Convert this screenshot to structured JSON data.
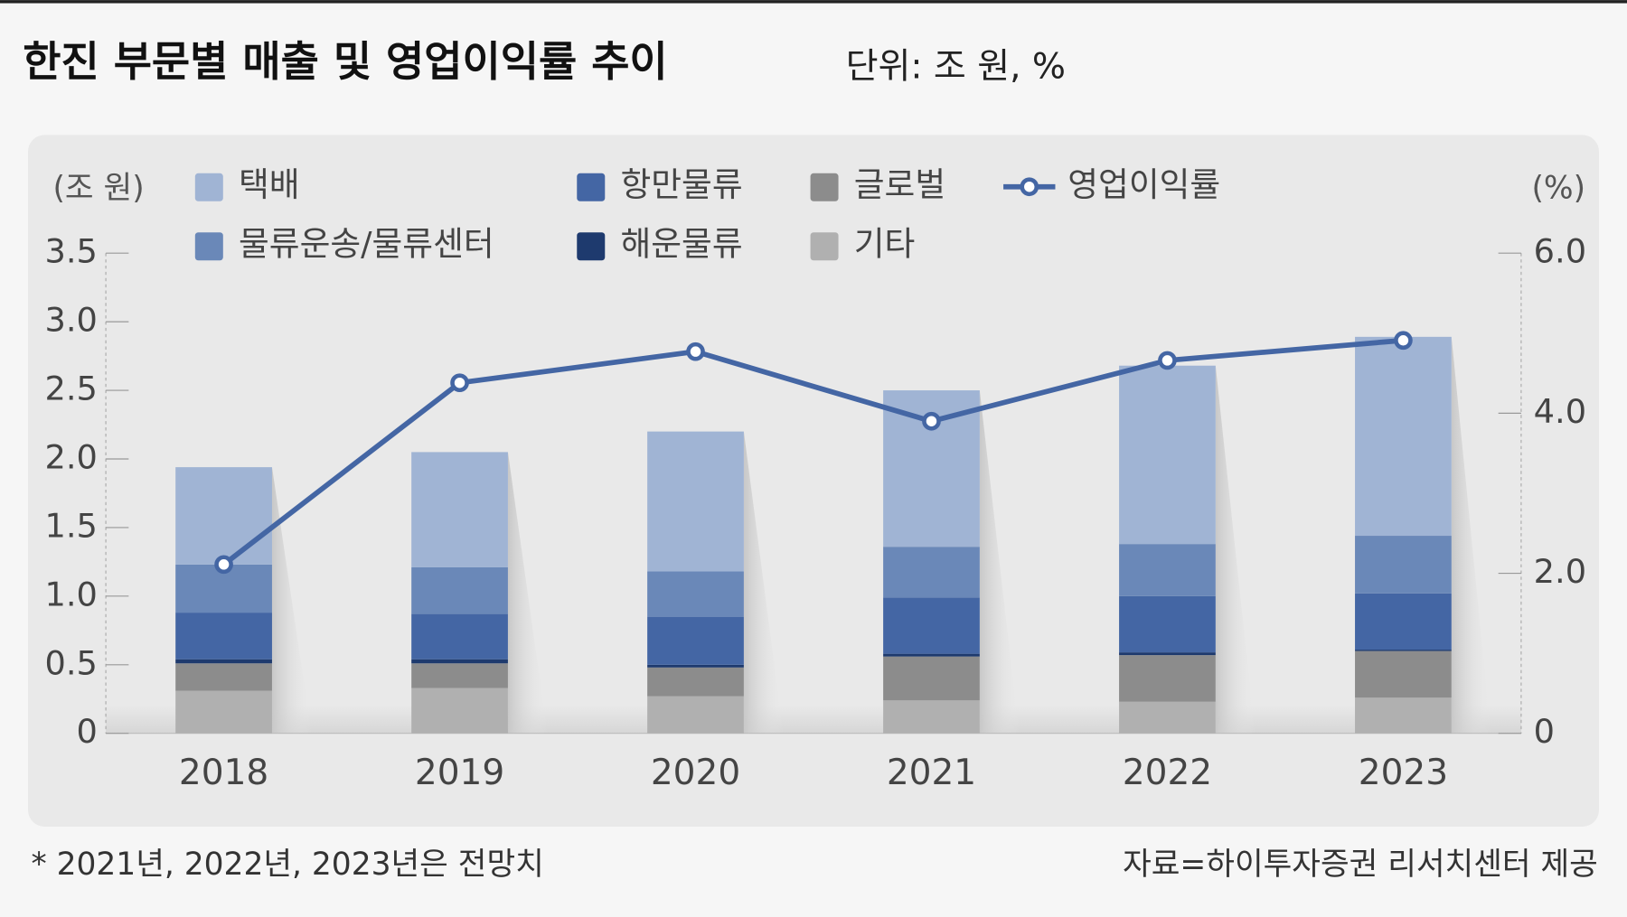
{
  "chart_data": {
    "type": "bar",
    "stacked": true,
    "title": "한진 부문별 매출 및 영업이익률 추이",
    "subtitle": "단위: 조 원, %",
    "y_label": "(조 원)",
    "y2_label": "(%)",
    "categories": [
      "2018",
      "2019",
      "2020",
      "2021",
      "2022",
      "2023"
    ],
    "series": [
      {
        "name": "택배",
        "color": "#a0b4d4",
        "values": [
          0.71,
          0.84,
          1.02,
          1.14,
          1.3,
          1.45
        ]
      },
      {
        "name": "물류운송/물류센터",
        "color": "#6a88b8",
        "values": [
          0.35,
          0.34,
          0.33,
          0.37,
          0.38,
          0.42
        ]
      },
      {
        "name": "항만물류",
        "color": "#4466a4",
        "values": [
          0.34,
          0.33,
          0.35,
          0.41,
          0.41,
          0.41
        ]
      },
      {
        "name": "해운물류",
        "color": "#1e3a6e",
        "values": [
          0.03,
          0.03,
          0.02,
          0.02,
          0.02,
          0.01
        ]
      },
      {
        "name": "글로벌",
        "color": "#8c8c8c",
        "values": [
          0.2,
          0.18,
          0.21,
          0.32,
          0.34,
          0.34
        ]
      },
      {
        "name": "기타",
        "color": "#b0b0b0",
        "values": [
          0.31,
          0.33,
          0.27,
          0.24,
          0.23,
          0.26
        ]
      },
      {
        "name": "영업이익률",
        "color": "#4466a4",
        "type": "line",
        "axis": "y2",
        "values": [
          2.11,
          4.38,
          4.77,
          3.9,
          4.66,
          4.91
        ]
      }
    ],
    "ylim": [
      0,
      3.5
    ],
    "yticks": [
      0,
      0.5,
      {
        "value": 1,
        "label": "1.0"
      },
      1.5,
      {
        "value": 2,
        "label": "2.0"
      },
      2.5,
      {
        "value": 3,
        "label": "3.0"
      },
      3.5
    ],
    "y2lim": [
      0,
      6
    ],
    "y2ticks": [
      0,
      {
        "value": 2,
        "label": "2.0"
      },
      {
        "value": 4,
        "label": "4.0"
      },
      {
        "value": 6,
        "label": "6.0"
      }
    ],
    "footnote": "* 2021년, 2022년, 2023년은 전망치",
    "source": "자료=하이투자증권 리서치센터 제공"
  }
}
